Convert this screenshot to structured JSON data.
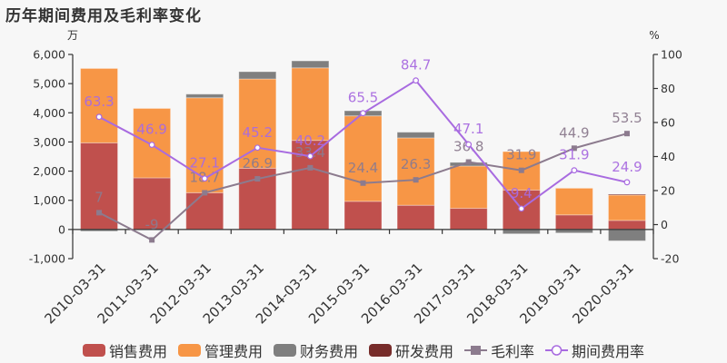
{
  "title": "历年期间费用及毛利率变化",
  "left_axis_unit": "万",
  "right_axis_unit": "%",
  "colors": {
    "sales": "#c0504d",
    "admin": "#f79646",
    "finance": "#7f7f7f",
    "rnd": "#772c2a",
    "gross_margin": "#8c7b8e",
    "expense_rate": "#a86be0",
    "background": "#f7f7f7"
  },
  "legend": [
    {
      "label": "销售费用",
      "type": "bar",
      "color_key": "sales"
    },
    {
      "label": "管理费用",
      "type": "bar",
      "color_key": "admin"
    },
    {
      "label": "财务费用",
      "type": "bar",
      "color_key": "finance"
    },
    {
      "label": "研发费用",
      "type": "bar",
      "color_key": "rnd"
    },
    {
      "label": "毛利率",
      "type": "line-square",
      "color_key": "gross_margin"
    },
    {
      "label": "期间费用率",
      "type": "line-circle",
      "color_key": "expense_rate"
    }
  ],
  "chart_data": {
    "type": "bar",
    "title": "历年期间费用及毛利率变化",
    "xlabel": "",
    "ylabel": "万",
    "y2label": "%",
    "ylim": [
      -1000,
      6000
    ],
    "y2lim": [
      -20,
      100
    ],
    "yticks": [
      "-1,000",
      "0",
      "1,000",
      "2,000",
      "3,000",
      "4,000",
      "5,000",
      "6,000"
    ],
    "y2ticks": [
      "-20",
      "0",
      "20",
      "40",
      "60",
      "80",
      "100"
    ],
    "categories": [
      "2010-03-31",
      "2011-03-31",
      "2012-03-31",
      "2013-03-31",
      "2014-03-31",
      "2015-03-31",
      "2016-03-31",
      "2017-03-31",
      "2018-03-31",
      "2019-03-31",
      "2020-03-31"
    ],
    "stacked": true,
    "series": [
      {
        "name": "销售费用",
        "type": "bar",
        "values": [
          2970,
          1770,
          1260,
          2100,
          3055,
          965,
          830,
          725,
          1350,
          500,
          310
        ]
      },
      {
        "name": "管理费用",
        "type": "bar",
        "values": [
          2550,
          2380,
          3255,
          3060,
          2485,
          2930,
          2310,
          1450,
          1320,
          915,
          870
        ]
      },
      {
        "name": "财务费用",
        "type": "bar",
        "values": [
          -60,
          0,
          125,
          250,
          240,
          175,
          195,
          125,
          -150,
          -120,
          -390
        ]
      },
      {
        "name": "研发费用",
        "type": "bar",
        "values": [
          0,
          0,
          0,
          0,
          0,
          0,
          0,
          0,
          0,
          0,
          30
        ]
      },
      {
        "name": "毛利率",
        "type": "line",
        "axis": "right",
        "values": [
          7,
          -9,
          18.7,
          26.9,
          33.4,
          24.4,
          26.3,
          36.8,
          31.9,
          44.9,
          53.5
        ]
      },
      {
        "name": "期间费用率",
        "type": "line",
        "axis": "right",
        "values": [
          63.3,
          46.9,
          27.1,
          45.2,
          40.2,
          65.5,
          84.7,
          47.1,
          9.4,
          31.9,
          24.9
        ]
      }
    ],
    "legend_position": "bottom",
    "grid": false
  }
}
